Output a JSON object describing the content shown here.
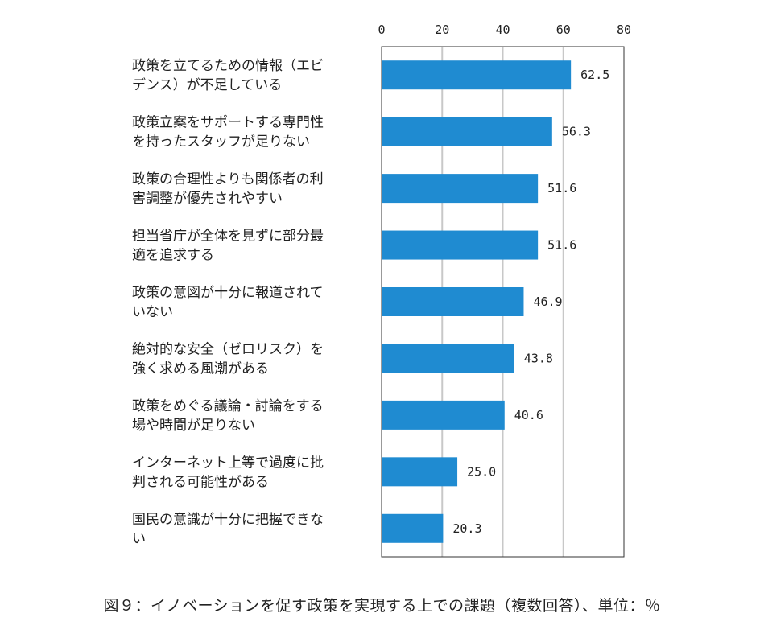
{
  "caption": "図９：イノベーションを促す政策を実現する上での課題（複数回答）、単位：％",
  "chart_data": {
    "type": "bar",
    "orientation": "horizontal",
    "xlim": [
      0,
      80
    ],
    "x_ticks": [
      "0",
      "20",
      "40",
      "60",
      "80"
    ],
    "x_tick_values": [
      0,
      20,
      40,
      60,
      80
    ],
    "grid": "vertical",
    "bar_color": "#1f8bd1",
    "categories": [
      [
        "政策を立てるための情報（エビ",
        "デンス）が不足している"
      ],
      [
        "政策立案をサポートする専門性",
        "を持ったスタッフが足りない"
      ],
      [
        "政策の合理性よりも関係者の利",
        "害調整が優先されやすい"
      ],
      [
        "担当省庁が全体を見ずに部分最",
        "適を追求する"
      ],
      [
        "政策の意図が十分に報道されて",
        "いない"
      ],
      [
        "絶対的な安全（ゼロリスク）を",
        "強く求める風潮がある"
      ],
      [
        "政策をめぐる議論・討論をする",
        "場や時間が足りない"
      ],
      [
        "インターネット上等で過度に批",
        "判される可能性がある"
      ],
      [
        "国民の意識が十分に把握できな",
        "い"
      ]
    ],
    "values": [
      62.5,
      56.3,
      51.6,
      51.6,
      46.9,
      43.8,
      40.6,
      25.0,
      20.3
    ],
    "value_labels": [
      "62.5",
      "56.3",
      "51.6",
      "51.6",
      "46.9",
      "43.8",
      "40.6",
      "25.0",
      "20.3"
    ]
  }
}
